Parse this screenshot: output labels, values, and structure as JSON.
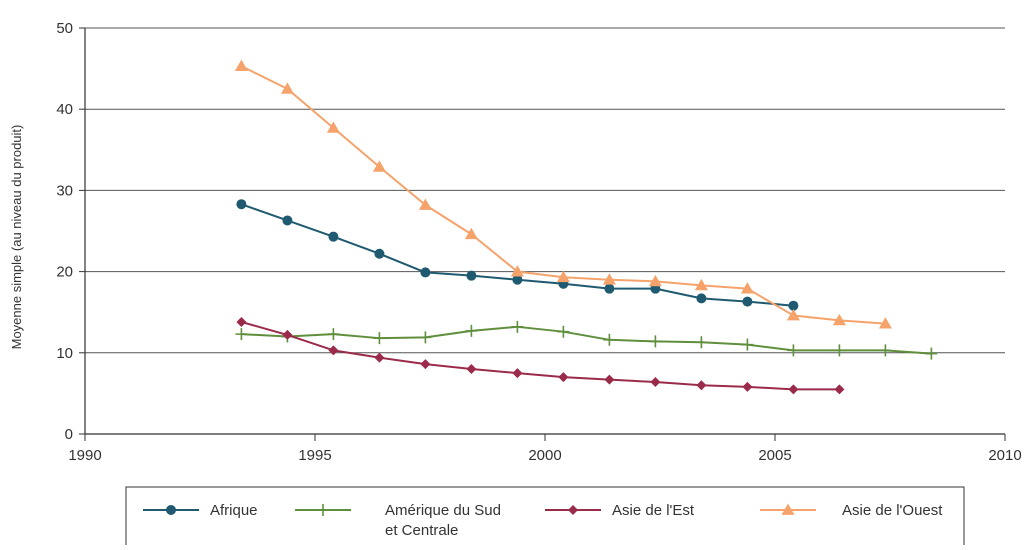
{
  "chart_data": {
    "type": "line",
    "title": "",
    "xlabel": "",
    "ylabel": "Moyenne simple (au niveau du produit)",
    "xlim": [
      1990,
      2010
    ],
    "ylim": [
      0,
      50
    ],
    "xticks": [
      1990,
      1995,
      2000,
      2005,
      2010
    ],
    "yticks": [
      0,
      10,
      20,
      30,
      40,
      50
    ],
    "x_tick_labels": [
      "1990",
      "1995",
      "2000",
      "2005",
      "2010"
    ],
    "y_tick_labels": [
      "0",
      "10",
      "20",
      "30",
      "40",
      "50"
    ],
    "grid": "horizontal",
    "legend_position": "bottom",
    "series": [
      {
        "name": "Afrique",
        "color": "#1f5a70",
        "marker": "circle",
        "points": [
          [
            1993.4,
            28.3
          ],
          [
            1994.4,
            26.3
          ],
          [
            1995.4,
            24.3
          ],
          [
            1996.4,
            22.2
          ],
          [
            1997.4,
            19.9
          ],
          [
            1998.4,
            19.5
          ],
          [
            1999.4,
            19.0
          ],
          [
            2000.4,
            18.5
          ],
          [
            2001.4,
            17.9
          ],
          [
            2002.4,
            17.9
          ],
          [
            2003.4,
            16.7
          ],
          [
            2004.4,
            16.3
          ],
          [
            2005.4,
            15.8
          ]
        ]
      },
      {
        "name": "Amérique du Sud et Centrale",
        "legend_lines": [
          "Amérique du Sud",
          "et Centrale"
        ],
        "color": "#5f8f3c",
        "marker": "plus",
        "points": [
          [
            1993.4,
            12.3
          ],
          [
            1994.4,
            12.0
          ],
          [
            1995.4,
            12.3
          ],
          [
            1996.4,
            11.8
          ],
          [
            1997.4,
            11.9
          ],
          [
            1998.4,
            12.7
          ],
          [
            1999.4,
            13.2
          ],
          [
            2000.4,
            12.6
          ],
          [
            2001.4,
            11.6
          ],
          [
            2002.4,
            11.4
          ],
          [
            2003.4,
            11.3
          ],
          [
            2004.4,
            11.0
          ],
          [
            2005.4,
            10.3
          ],
          [
            2006.4,
            10.3
          ],
          [
            2007.4,
            10.3
          ],
          [
            2008.4,
            9.9
          ]
        ]
      },
      {
        "name": "Asie de l'Est",
        "color": "#9b2b4a",
        "marker": "diamond",
        "points": [
          [
            1993.4,
            13.8
          ],
          [
            1994.4,
            12.2
          ],
          [
            1995.4,
            10.3
          ],
          [
            1996.4,
            9.4
          ],
          [
            1997.4,
            8.6
          ],
          [
            1998.4,
            8.0
          ],
          [
            1999.4,
            7.5
          ],
          [
            2000.4,
            7.0
          ],
          [
            2001.4,
            6.7
          ],
          [
            2002.4,
            6.4
          ],
          [
            2003.4,
            6.0
          ],
          [
            2004.4,
            5.8
          ],
          [
            2005.4,
            5.5
          ],
          [
            2006.4,
            5.5
          ]
        ]
      },
      {
        "name": "Asie de l'Ouest",
        "color": "#f5a36b",
        "marker": "triangle",
        "points": [
          [
            1993.4,
            45.3
          ],
          [
            1994.4,
            42.5
          ],
          [
            1995.4,
            37.7
          ],
          [
            1996.4,
            32.9
          ],
          [
            1997.4,
            28.2
          ],
          [
            1998.4,
            24.6
          ],
          [
            1999.4,
            20.0
          ],
          [
            2000.4,
            19.3
          ],
          [
            2001.4,
            19.0
          ],
          [
            2002.4,
            18.8
          ],
          [
            2003.4,
            18.3
          ],
          [
            2004.4,
            17.9
          ],
          [
            2005.4,
            14.6
          ],
          [
            2006.4,
            14.0
          ],
          [
            2007.4,
            13.6
          ]
        ]
      }
    ]
  },
  "colors": {
    "axis": "#333333",
    "grid": "#555555",
    "legend_border": "#333333"
  }
}
